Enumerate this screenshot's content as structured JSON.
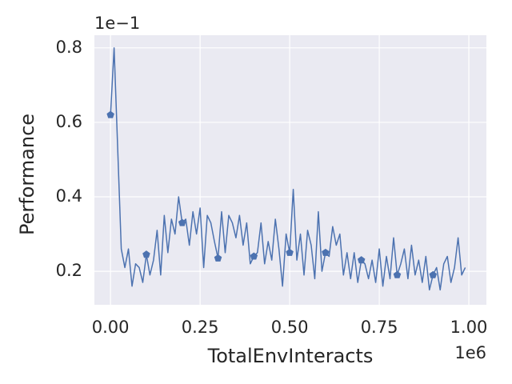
{
  "chart_data": {
    "type": "line",
    "xlabel": "TotalEnvInteracts",
    "ylabel": "Performance",
    "x_offset_label": "1e6",
    "y_offset_label": "1e−1",
    "color": "#4c72b0",
    "background": "#eaeaf2",
    "grid": true,
    "marker": "pentagon",
    "markevery": 10,
    "xlim": [
      -0.045,
      1.049
    ],
    "ylim": [
      0.11,
      0.834
    ],
    "xticks": [
      {
        "value": 0,
        "label": "0.00"
      },
      {
        "value": 0.25,
        "label": "0.25"
      },
      {
        "value": 0.5,
        "label": "0.50"
      },
      {
        "value": 0.75,
        "label": "0.75"
      },
      {
        "value": 1,
        "label": "1.00"
      }
    ],
    "yticks": [
      0.2,
      0.4,
      0.6,
      0.8
    ],
    "x": [
      0,
      0.01,
      0.02,
      0.03,
      0.04,
      0.05,
      0.06,
      0.07,
      0.08,
      0.09,
      0.1,
      0.11,
      0.12,
      0.13,
      0.14,
      0.15,
      0.16,
      0.17,
      0.18,
      0.19,
      0.2,
      0.21,
      0.22,
      0.23,
      0.24,
      0.25,
      0.26,
      0.27,
      0.28,
      0.29,
      0.3,
      0.31,
      0.32,
      0.33,
      0.34,
      0.35,
      0.36,
      0.37,
      0.38,
      0.39,
      0.4,
      0.41,
      0.42,
      0.43,
      0.44,
      0.45,
      0.46,
      0.47,
      0.48,
      0.49,
      0.5,
      0.51,
      0.52,
      0.53,
      0.54,
      0.55,
      0.56,
      0.57,
      0.58,
      0.59,
      0.6,
      0.61,
      0.62,
      0.63,
      0.64,
      0.65,
      0.66,
      0.67,
      0.68,
      0.69,
      0.7,
      0.71,
      0.72,
      0.73,
      0.74,
      0.75,
      0.76,
      0.77,
      0.78,
      0.79,
      0.8,
      0.81,
      0.82,
      0.83,
      0.84,
      0.85,
      0.86,
      0.87,
      0.88,
      0.89,
      0.9,
      0.91,
      0.92,
      0.93,
      0.94,
      0.95,
      0.96,
      0.97,
      0.98,
      0.99
    ],
    "values": [
      0.62,
      0.8,
      0.53,
      0.26,
      0.21,
      0.26,
      0.16,
      0.22,
      0.21,
      0.17,
      0.245,
      0.19,
      0.23,
      0.31,
      0.19,
      0.35,
      0.25,
      0.34,
      0.3,
      0.4,
      0.33,
      0.34,
      0.27,
      0.36,
      0.3,
      0.37,
      0.21,
      0.35,
      0.33,
      0.28,
      0.235,
      0.36,
      0.25,
      0.35,
      0.33,
      0.29,
      0.35,
      0.27,
      0.33,
      0.22,
      0.24,
      0.25,
      0.33,
      0.22,
      0.28,
      0.23,
      0.34,
      0.26,
      0.16,
      0.3,
      0.25,
      0.42,
      0.23,
      0.3,
      0.19,
      0.31,
      0.27,
      0.18,
      0.36,
      0.2,
      0.25,
      0.24,
      0.32,
      0.27,
      0.3,
      0.19,
      0.25,
      0.18,
      0.25,
      0.17,
      0.23,
      0.22,
      0.18,
      0.23,
      0.17,
      0.26,
      0.16,
      0.24,
      0.18,
      0.29,
      0.19,
      0.22,
      0.26,
      0.18,
      0.27,
      0.19,
      0.23,
      0.17,
      0.24,
      0.15,
      0.19,
      0.21,
      0.15,
      0.22,
      0.24,
      0.17,
      0.21,
      0.29,
      0.19,
      0.21
    ]
  }
}
